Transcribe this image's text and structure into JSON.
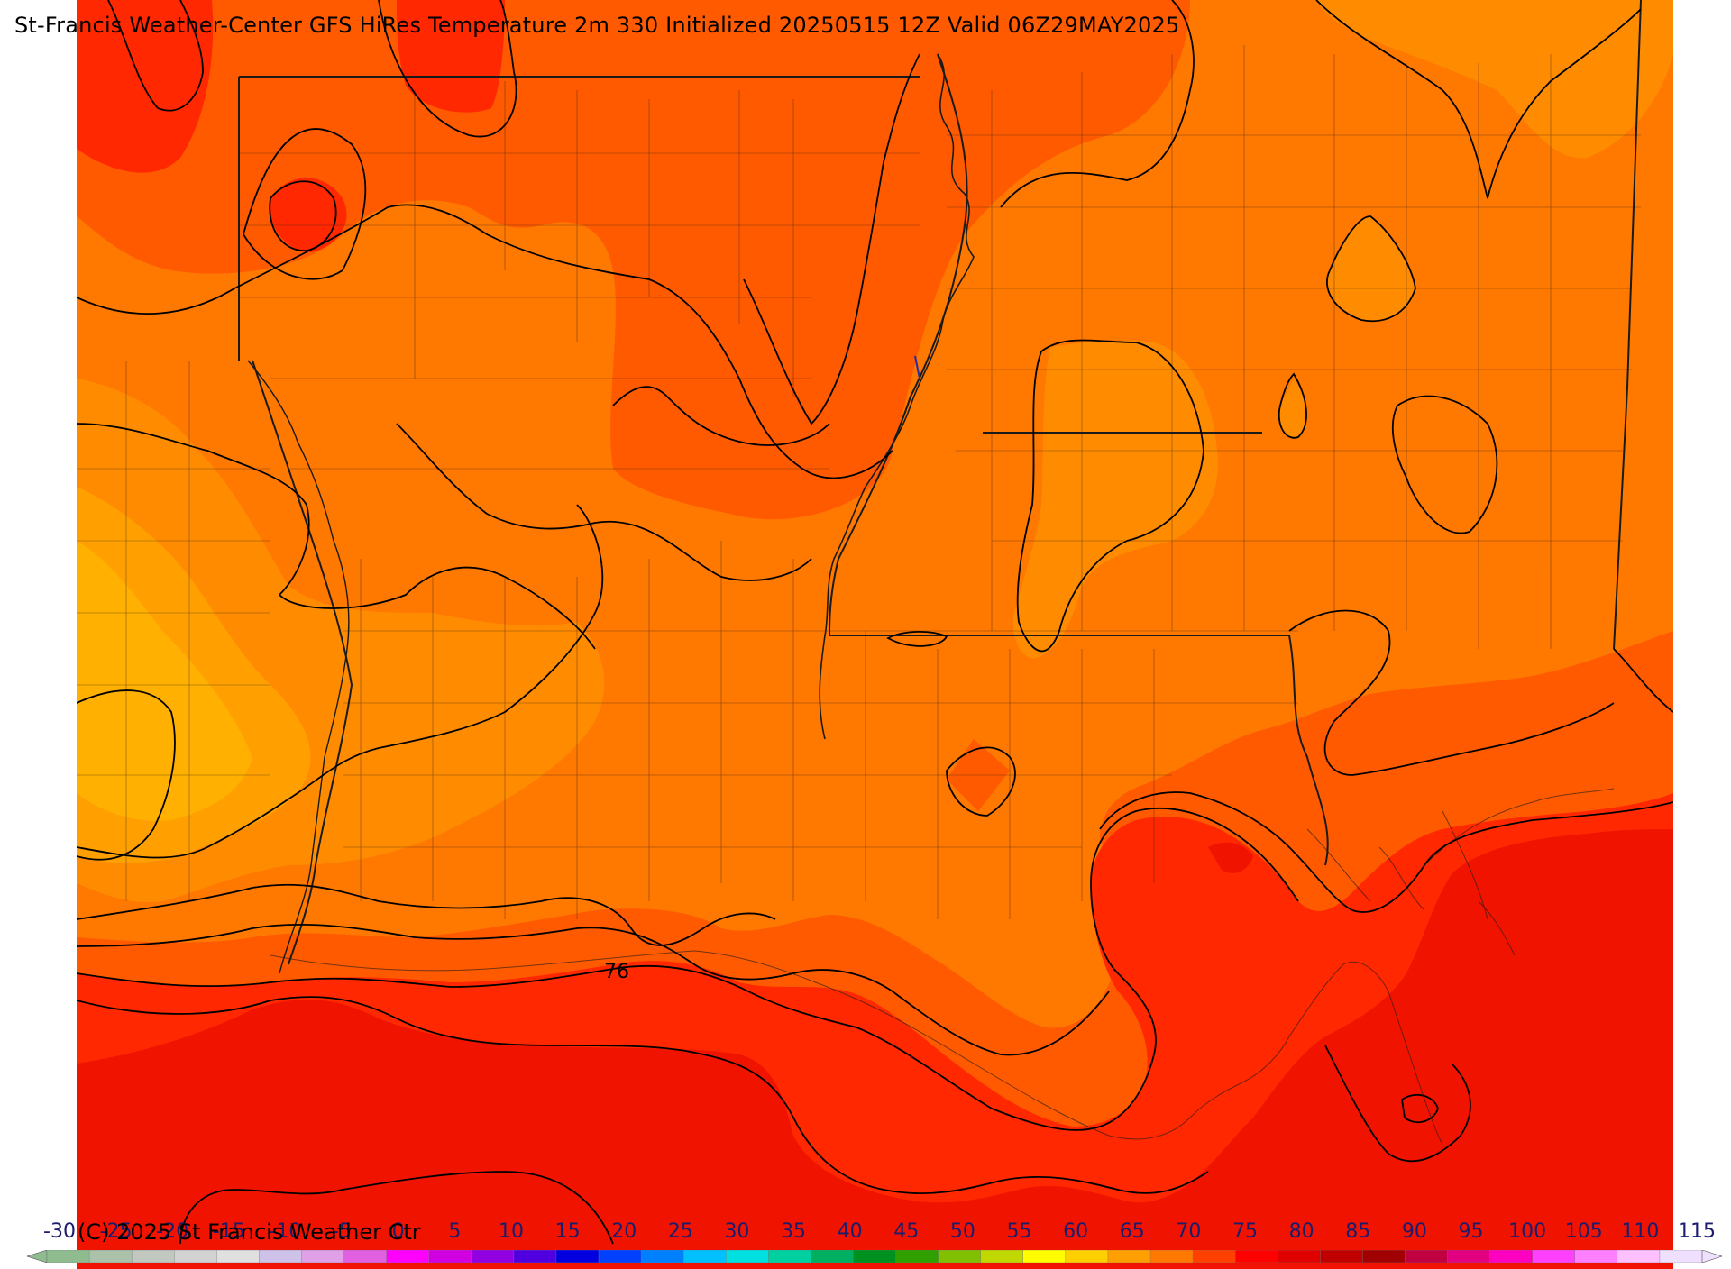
{
  "header": {
    "title": "St-Francis Weather-Center GFS HiRes Temperature 2m  330 Initialized 20250515 12Z Valid 06Z29MAY2025"
  },
  "map": {
    "contour_label": "76",
    "colors": {
      "t55": "#ffb000",
      "t60": "#ffa000",
      "t65": "#ff8c00",
      "t70": "#ff7800",
      "t75": "#ff5a00",
      "t80": "#ff2800",
      "t85": "#f01400",
      "contour": "#000000",
      "border": "#1a1a1a"
    }
  },
  "footer": {
    "copyright": "(C) 2025 St Francis Weather Ctr"
  },
  "colorbar": {
    "labels": [
      "-30",
      "-25",
      "-20",
      "-15",
      "-10",
      "-5",
      "0",
      "5",
      "10",
      "15",
      "20",
      "25",
      "30",
      "35",
      "40",
      "45",
      "50",
      "55",
      "60",
      "65",
      "70",
      "75",
      "80",
      "85",
      "90",
      "95",
      "100",
      "105",
      "110",
      "115"
    ],
    "colors": [
      "#8fbc8f",
      "#a9c2a9",
      "#c0c8c0",
      "#d2d2d2",
      "#e0e0e0",
      "#cfc2e8",
      "#e0a0e8",
      "#e060e0",
      "#ff00ff",
      "#d000e0",
      "#9000e0",
      "#5000e0",
      "#0000e0",
      "#0040ff",
      "#0080ff",
      "#00c0ff",
      "#00e0e0",
      "#00d0a0",
      "#00b060",
      "#009020",
      "#30a000",
      "#80c000",
      "#c0d800",
      "#ffff00",
      "#ffd000",
      "#ffa000",
      "#ff7800",
      "#ff4000",
      "#ff0000",
      "#e00000",
      "#c00000",
      "#a00000",
      "#c00040",
      "#e00080",
      "#ff00c0",
      "#ff40ff",
      "#ff80ff",
      "#ffc0ff",
      "#f0e0ff"
    ]
  }
}
